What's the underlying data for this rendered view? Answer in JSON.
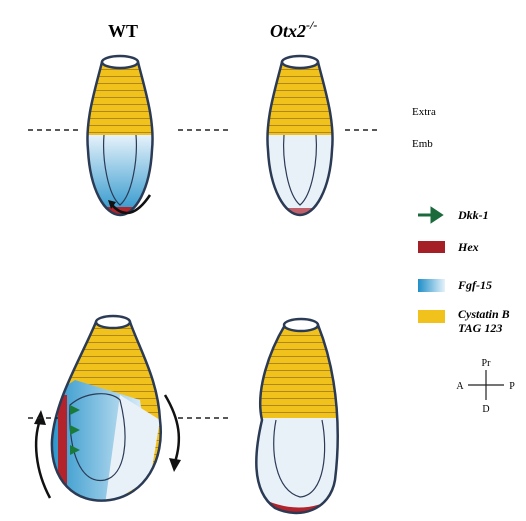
{
  "header": {
    "wt": "WT",
    "otx2": "Otx2",
    "otx2_sup": "-/-"
  },
  "regions": {
    "extra": "Extra",
    "emb": "Emb"
  },
  "legend": {
    "dkk1": "Dkk-1",
    "hex": "Hex",
    "fgf15": "Fgf-15",
    "cystatin": "Cystatin B",
    "tag": "TAG 123"
  },
  "axes": {
    "pr": "Pr",
    "a": "A",
    "p": "P",
    "d": "D"
  }
}
